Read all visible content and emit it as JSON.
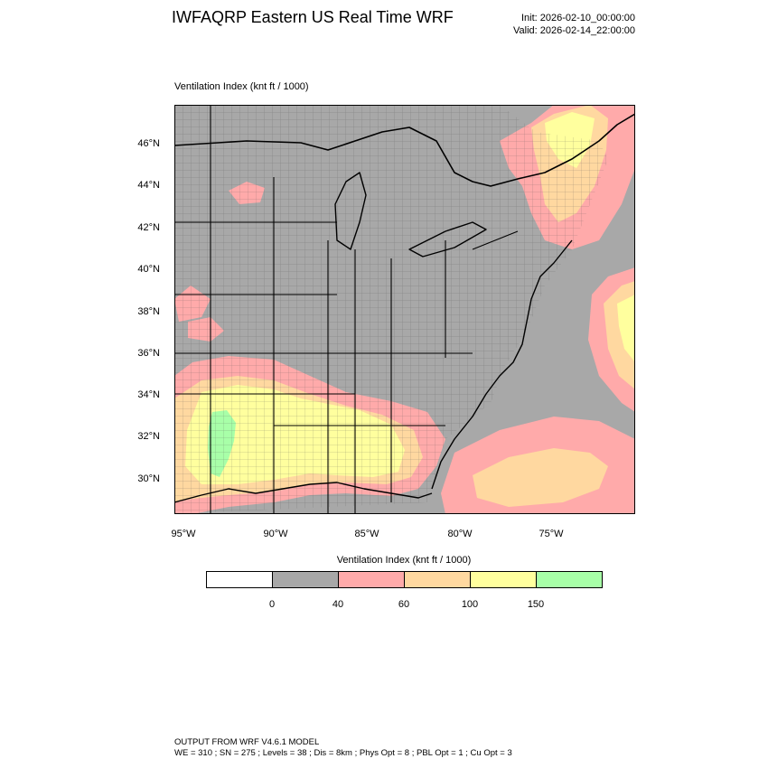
{
  "header": {
    "title": "IWFAQRP Eastern US Real Time WRF",
    "init": "Init: 2026-02-10_00:00:00",
    "valid": "Valid: 2026-02-14_22:00:00"
  },
  "map": {
    "variable_label": "Ventilation Index   (knt ft / 1000)",
    "background_color": "#a8a8a8",
    "lat_labels": [
      "46°N",
      "44°N",
      "42°N",
      "40°N",
      "38°N",
      "36°N",
      "34°N",
      "32°N",
      "30°N"
    ],
    "lon_labels": [
      "95°W",
      "90°W",
      "85°W",
      "80°W",
      "75°W"
    ]
  },
  "colorbar": {
    "title": "Ventilation Index  (knt ft / 1000)",
    "colors": [
      "#ffffff",
      "#a8a8a8",
      "#ffaaaa",
      "#ffd8a0",
      "#ffff9e",
      "#a8ffa8"
    ],
    "tick_labels": [
      "0",
      "40",
      "60",
      "100",
      "150"
    ]
  },
  "footer": {
    "line1": "OUTPUT FROM WRF V4.6.1 MODEL",
    "line2": "WE = 310 ; SN = 275 ; Levels = 38 ; Dis = 8km ; Phys Opt = 8 ; PBL Opt = 1 ; Cu Opt = 3"
  }
}
